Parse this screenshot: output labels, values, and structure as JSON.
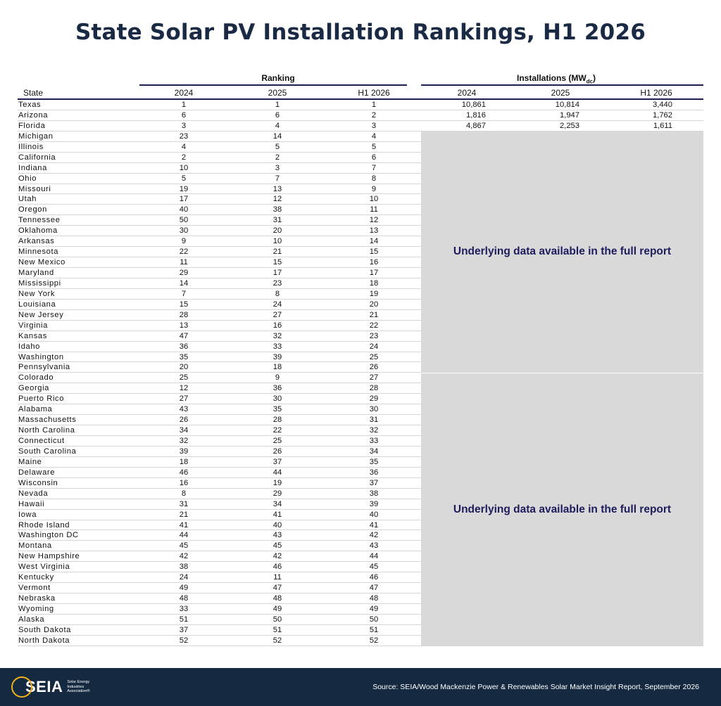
{
  "title": "State Solar PV Installation Rankings, H1 2026",
  "headers": {
    "ranking_group": "Ranking",
    "installations_group": "Installations (MW",
    "installations_group_sub": "dc",
    "installations_group_close": ")",
    "state": "State",
    "rank_2024": "2024",
    "rank_2025": "2025",
    "rank_h1_2026": "H1 2026",
    "inst_2024": "2024",
    "inst_2025": "2025",
    "inst_h1_2026": "H1 2026"
  },
  "rows": [
    {
      "state": "Texas",
      "r2024": "1",
      "r2025": "1",
      "rh1": "1",
      "i2024": "10,861",
      "i2025": "10,814",
      "ih1": "3,440"
    },
    {
      "state": "Arizona",
      "r2024": "6",
      "r2025": "6",
      "rh1": "2",
      "i2024": "1,816",
      "i2025": "1,947",
      "ih1": "1,762"
    },
    {
      "state": "Florida",
      "r2024": "3",
      "r2025": "4",
      "rh1": "3",
      "i2024": "4,867",
      "i2025": "2,253",
      "ih1": "1,611"
    },
    {
      "state": "Michigan",
      "r2024": "23",
      "r2025": "14",
      "rh1": "4"
    },
    {
      "state": "Illinois",
      "r2024": "4",
      "r2025": "5",
      "rh1": "5"
    },
    {
      "state": "California",
      "r2024": "2",
      "r2025": "2",
      "rh1": "6"
    },
    {
      "state": "Indiana",
      "r2024": "10",
      "r2025": "3",
      "rh1": "7"
    },
    {
      "state": "Ohio",
      "r2024": "5",
      "r2025": "7",
      "rh1": "8"
    },
    {
      "state": "Missouri",
      "r2024": "19",
      "r2025": "13",
      "rh1": "9"
    },
    {
      "state": "Utah",
      "r2024": "17",
      "r2025": "12",
      "rh1": "10"
    },
    {
      "state": "Oregon",
      "r2024": "40",
      "r2025": "38",
      "rh1": "11"
    },
    {
      "state": "Tennessee",
      "r2024": "50",
      "r2025": "31",
      "rh1": "12"
    },
    {
      "state": "Oklahoma",
      "r2024": "30",
      "r2025": "20",
      "rh1": "13"
    },
    {
      "state": "Arkansas",
      "r2024": "9",
      "r2025": "10",
      "rh1": "14"
    },
    {
      "state": "Minnesota",
      "r2024": "22",
      "r2025": "21",
      "rh1": "15"
    },
    {
      "state": "New Mexico",
      "r2024": "11",
      "r2025": "15",
      "rh1": "16"
    },
    {
      "state": "Maryland",
      "r2024": "29",
      "r2025": "17",
      "rh1": "17"
    },
    {
      "state": "Mississippi",
      "r2024": "14",
      "r2025": "23",
      "rh1": "18"
    },
    {
      "state": "New York",
      "r2024": "7",
      "r2025": "8",
      "rh1": "19"
    },
    {
      "state": "Louisiana",
      "r2024": "15",
      "r2025": "24",
      "rh1": "20"
    },
    {
      "state": "New Jersey",
      "r2024": "28",
      "r2025": "27",
      "rh1": "21"
    },
    {
      "state": "Virginia",
      "r2024": "13",
      "r2025": "16",
      "rh1": "22"
    },
    {
      "state": "Kansas",
      "r2024": "47",
      "r2025": "32",
      "rh1": "23"
    },
    {
      "state": "Idaho",
      "r2024": "36",
      "r2025": "33",
      "rh1": "24"
    },
    {
      "state": "Washington",
      "r2024": "35",
      "r2025": "39",
      "rh1": "25"
    },
    {
      "state": "Pennsylvania",
      "r2024": "20",
      "r2025": "18",
      "rh1": "26"
    },
    {
      "state": "Colorado",
      "r2024": "25",
      "r2025": "9",
      "rh1": "27"
    },
    {
      "state": "Georgia",
      "r2024": "12",
      "r2025": "36",
      "rh1": "28"
    },
    {
      "state": "Puerto Rico",
      "r2024": "27",
      "r2025": "30",
      "rh1": "29"
    },
    {
      "state": "Alabama",
      "r2024": "43",
      "r2025": "35",
      "rh1": "30"
    },
    {
      "state": "Massachusetts",
      "r2024": "26",
      "r2025": "28",
      "rh1": "31"
    },
    {
      "state": "North Carolina",
      "r2024": "34",
      "r2025": "22",
      "rh1": "32"
    },
    {
      "state": "Connecticut",
      "r2024": "32",
      "r2025": "25",
      "rh1": "33"
    },
    {
      "state": "South Carolina",
      "r2024": "39",
      "r2025": "26",
      "rh1": "34"
    },
    {
      "state": "Maine",
      "r2024": "18",
      "r2025": "37",
      "rh1": "35"
    },
    {
      "state": "Delaware",
      "r2024": "46",
      "r2025": "44",
      "rh1": "36"
    },
    {
      "state": "Wisconsin",
      "r2024": "16",
      "r2025": "19",
      "rh1": "37"
    },
    {
      "state": "Nevada",
      "r2024": "8",
      "r2025": "29",
      "rh1": "38"
    },
    {
      "state": "Hawaii",
      "r2024": "31",
      "r2025": "34",
      "rh1": "39"
    },
    {
      "state": "Iowa",
      "r2024": "21",
      "r2025": "41",
      "rh1": "40"
    },
    {
      "state": "Rhode Island",
      "r2024": "41",
      "r2025": "40",
      "rh1": "41"
    },
    {
      "state": "Washington DC",
      "r2024": "44",
      "r2025": "43",
      "rh1": "42"
    },
    {
      "state": "Montana",
      "r2024": "45",
      "r2025": "45",
      "rh1": "43"
    },
    {
      "state": "New Hampshire",
      "r2024": "42",
      "r2025": "42",
      "rh1": "44"
    },
    {
      "state": "West Virginia",
      "r2024": "38",
      "r2025": "46",
      "rh1": "45"
    },
    {
      "state": "Kentucky",
      "r2024": "24",
      "r2025": "11",
      "rh1": "46"
    },
    {
      "state": "Vermont",
      "r2024": "49",
      "r2025": "47",
      "rh1": "47"
    },
    {
      "state": "Nebraska",
      "r2024": "48",
      "r2025": "48",
      "rh1": "48"
    },
    {
      "state": "Wyoming",
      "r2024": "33",
      "r2025": "49",
      "rh1": "49"
    },
    {
      "state": "Alaska",
      "r2024": "51",
      "r2025": "50",
      "rh1": "50"
    },
    {
      "state": "South Dakota",
      "r2024": "37",
      "r2025": "51",
      "rh1": "51"
    },
    {
      "state": "North Dakota",
      "r2024": "52",
      "r2025": "52",
      "rh1": "52"
    }
  ],
  "overlay_text_1": "Underlying data available in the full report",
  "overlay_text_2": "Underlying data available in the full report",
  "footer": {
    "logo_text": "SEIA",
    "logo_subtext": "Solar Energy Industries Association®",
    "source": "Source: SEIA/Wood Mackenzie Power & Renewables Solar Market Insight Report, September 2026"
  },
  "colors": {
    "title": "#1b2a44",
    "footer_bg": "#152a40",
    "logo_accent": "#f2b01e",
    "overlay_bg": "#d9d9d9",
    "overlay_text": "#1d1d5e"
  }
}
